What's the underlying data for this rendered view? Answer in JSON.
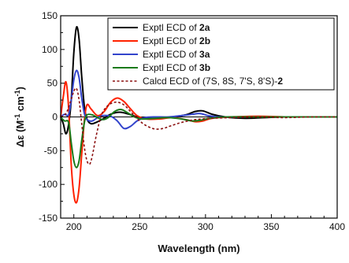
{
  "chart_data": {
    "type": "line",
    "xlabel": "Wavelength (nm)",
    "ylabel_parts": [
      "Δε (M",
      "-1",
      " cm",
      "-1",
      ")"
    ],
    "xlim": [
      190,
      400
    ],
    "ylim": [
      -150,
      150
    ],
    "x_ticks": [
      200,
      250,
      300,
      350,
      400
    ],
    "y_ticks": [
      -150,
      -100,
      -50,
      0,
      50,
      100,
      150
    ],
    "zero_line": true,
    "legend": {
      "placement": "top-right",
      "entries": [
        {
          "prefix": "Exptl ECD of ",
          "bold": "2a",
          "suffix": ""
        },
        {
          "prefix": "Exptl ECD of ",
          "bold": "2b",
          "suffix": ""
        },
        {
          "prefix": "Exptl ECD of ",
          "bold": "3a",
          "suffix": ""
        },
        {
          "prefix": "Exptl ECD of ",
          "bold": "3b",
          "suffix": ""
        },
        {
          "prefix": "Calcd ECD of  (7S, 8S, 7'S, 8'S)-",
          "bold": "2",
          "suffix": ""
        }
      ]
    },
    "series": [
      {
        "color": "#000000",
        "dash": "solid",
        "points": [
          [
            190,
            0
          ],
          [
            192,
            -10
          ],
          [
            194,
            -25
          ],
          [
            196,
            -12
          ],
          [
            198,
            25
          ],
          [
            200,
            95
          ],
          [
            202,
            133
          ],
          [
            204,
            115
          ],
          [
            206,
            60
          ],
          [
            208,
            15
          ],
          [
            210,
            -3
          ],
          [
            213,
            -10
          ],
          [
            217,
            -8
          ],
          [
            222,
            -3
          ],
          [
            228,
            4
          ],
          [
            235,
            7
          ],
          [
            242,
            4
          ],
          [
            248,
            0
          ],
          [
            255,
            -2
          ],
          [
            265,
            -2
          ],
          [
            275,
            0
          ],
          [
            285,
            3
          ],
          [
            292,
            8
          ],
          [
            298,
            9
          ],
          [
            305,
            4
          ],
          [
            315,
            0
          ],
          [
            330,
            -2
          ],
          [
            345,
            -1
          ],
          [
            360,
            0
          ],
          [
            380,
            0
          ],
          [
            400,
            0
          ]
        ]
      },
      {
        "color": "#ff2200",
        "dash": "solid",
        "points": [
          [
            190,
            0
          ],
          [
            192,
            30
          ],
          [
            194,
            52
          ],
          [
            196,
            15
          ],
          [
            198,
            -70
          ],
          [
            200,
            -115
          ],
          [
            202,
            -127
          ],
          [
            204,
            -105
          ],
          [
            206,
            -55
          ],
          [
            208,
            -5
          ],
          [
            210,
            18
          ],
          [
            213,
            12
          ],
          [
            218,
            2
          ],
          [
            223,
            8
          ],
          [
            228,
            22
          ],
          [
            233,
            28
          ],
          [
            238,
            23
          ],
          [
            243,
            12
          ],
          [
            248,
            2
          ],
          [
            255,
            -3
          ],
          [
            265,
            -3
          ],
          [
            275,
            -1
          ],
          [
            285,
            -4
          ],
          [
            292,
            -7
          ],
          [
            298,
            -6
          ],
          [
            305,
            -2
          ],
          [
            320,
            0
          ],
          [
            340,
            1
          ],
          [
            360,
            0
          ],
          [
            380,
            0
          ],
          [
            400,
            0
          ]
        ]
      },
      {
        "color": "#3344cc",
        "dash": "solid",
        "points": [
          [
            190,
            0
          ],
          [
            193,
            4
          ],
          [
            196,
            3
          ],
          [
            198,
            25
          ],
          [
            200,
            55
          ],
          [
            202,
            69
          ],
          [
            204,
            58
          ],
          [
            206,
            28
          ],
          [
            208,
            5
          ],
          [
            210,
            -4
          ],
          [
            214,
            -6
          ],
          [
            218,
            -1
          ],
          [
            222,
            2
          ],
          [
            228,
            1
          ],
          [
            233,
            -6
          ],
          [
            238,
            -17
          ],
          [
            243,
            -14
          ],
          [
            248,
            -6
          ],
          [
            254,
            -1
          ],
          [
            262,
            0
          ],
          [
            272,
            0
          ],
          [
            282,
            2
          ],
          [
            290,
            4
          ],
          [
            296,
            5
          ],
          [
            302,
            2
          ],
          [
            310,
            0
          ],
          [
            330,
            0
          ],
          [
            350,
            0
          ],
          [
            400,
            0
          ]
        ]
      },
      {
        "color": "#1a7a1a",
        "dash": "solid",
        "points": [
          [
            190,
            0
          ],
          [
            193,
            -6
          ],
          [
            196,
            -8
          ],
          [
            198,
            -38
          ],
          [
            200,
            -65
          ],
          [
            202,
            -75
          ],
          [
            204,
            -65
          ],
          [
            206,
            -35
          ],
          [
            208,
            -8
          ],
          [
            210,
            3
          ],
          [
            214,
            3
          ],
          [
            218,
            -1
          ],
          [
            222,
            -4
          ],
          [
            226,
            -1
          ],
          [
            231,
            8
          ],
          [
            236,
            11
          ],
          [
            241,
            6
          ],
          [
            246,
            0
          ],
          [
            252,
            -3
          ],
          [
            262,
            -2
          ],
          [
            272,
            -1
          ],
          [
            282,
            -3
          ],
          [
            290,
            -6
          ],
          [
            296,
            -5
          ],
          [
            303,
            -2
          ],
          [
            315,
            0
          ],
          [
            335,
            0
          ],
          [
            360,
            0
          ],
          [
            400,
            0
          ]
        ]
      },
      {
        "color": "#8b1010",
        "dash": "dashed",
        "points": [
          [
            190,
            0
          ],
          [
            194,
            5
          ],
          [
            197,
            20
          ],
          [
            200,
            38
          ],
          [
            202,
            42
          ],
          [
            204,
            25
          ],
          [
            206,
            -10
          ],
          [
            208,
            -45
          ],
          [
            210,
            -65
          ],
          [
            212,
            -70
          ],
          [
            214,
            -58
          ],
          [
            217,
            -28
          ],
          [
            221,
            3
          ],
          [
            226,
            17
          ],
          [
            232,
            22
          ],
          [
            238,
            18
          ],
          [
            244,
            6
          ],
          [
            250,
            -6
          ],
          [
            256,
            -14
          ],
          [
            262,
            -18
          ],
          [
            268,
            -17
          ],
          [
            274,
            -13
          ],
          [
            282,
            -8
          ],
          [
            292,
            -4
          ],
          [
            305,
            -2
          ],
          [
            320,
            -1
          ],
          [
            340,
            0
          ],
          [
            360,
            -1
          ],
          [
            380,
            0
          ],
          [
            400,
            0
          ]
        ]
      }
    ]
  }
}
